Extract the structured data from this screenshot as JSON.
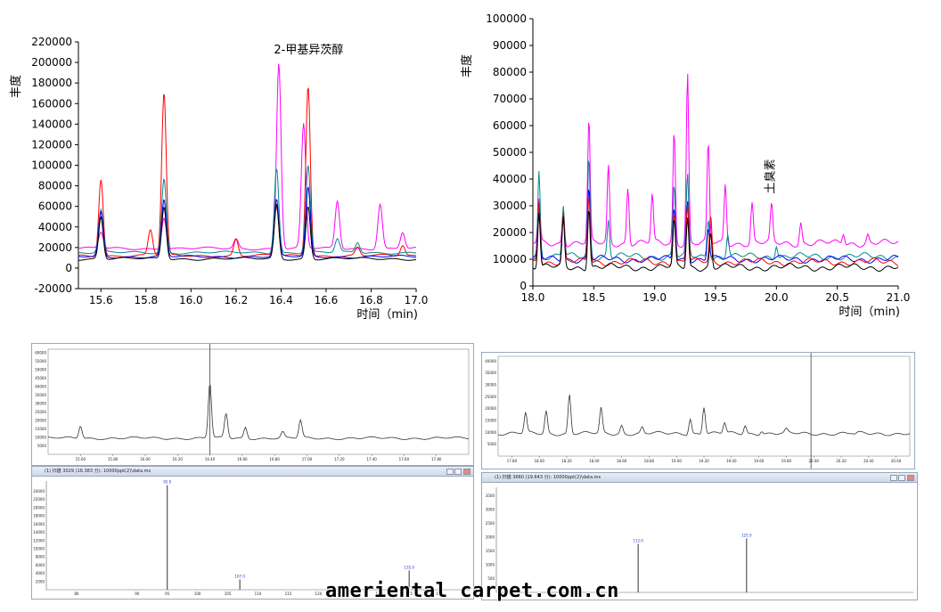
{
  "chart_data": [
    {
      "type": "line",
      "title": "",
      "xlabel": "时间（min)",
      "ylabel": "丰度",
      "xlim": [
        15.5,
        17.0
      ],
      "ylim": [
        -20000,
        220000
      ],
      "x_ticks": [
        "15.6",
        "15.8",
        "16.0",
        "16.2",
        "16.4",
        "16.6",
        "16.8",
        "17.0"
      ],
      "y_ticks": [
        "-20000",
        "0",
        "20000",
        "40000",
        "60000",
        "80000",
        "100000",
        "120000",
        "140000",
        "160000",
        "180000",
        "200000",
        "220000"
      ],
      "annotations": [
        {
          "text": "2-甲基异茨醇",
          "x": 16.4
        }
      ],
      "series": [
        {
          "color": "#ff00ff",
          "peaks": [
            [
              15.6,
              35000
            ],
            [
              15.88,
              50000
            ],
            [
              16.2,
              28000
            ],
            [
              16.39,
              200000
            ],
            [
              16.5,
              140000
            ],
            [
              16.65,
              65000
            ],
            [
              16.84,
              63000
            ],
            [
              16.94,
              35000
            ]
          ]
        },
        {
          "color": "#ff0000",
          "peaks": [
            [
              15.6,
              87000
            ],
            [
              15.82,
              37000
            ],
            [
              15.88,
              170000
            ],
            [
              16.2,
              28000
            ],
            [
              16.38,
              60000
            ],
            [
              16.52,
              178000
            ],
            [
              16.74,
              20000
            ],
            [
              16.94,
              22000
            ]
          ]
        },
        {
          "color": "#008b8b",
          "peaks": [
            [
              15.6,
              56000
            ],
            [
              15.88,
              87000
            ],
            [
              16.38,
              98000
            ],
            [
              16.52,
              100000
            ],
            [
              16.65,
              28000
            ],
            [
              16.74,
              25000
            ]
          ]
        },
        {
          "color": "#0000ff",
          "peaks": [
            [
              15.6,
              54000
            ],
            [
              15.88,
              66000
            ],
            [
              16.38,
              66000
            ],
            [
              16.52,
              78000
            ]
          ]
        },
        {
          "color": "#000000",
          "peaks": [
            [
              15.6,
              50000
            ],
            [
              15.88,
              60000
            ],
            [
              16.38,
              62000
            ],
            [
              16.52,
              60000
            ]
          ]
        }
      ]
    },
    {
      "type": "line",
      "title": "",
      "xlabel": "时间（min)",
      "ylabel": "丰度",
      "xlim": [
        18.0,
        21.0
      ],
      "ylim": [
        0,
        100000
      ],
      "x_ticks": [
        "18.0",
        "18.5",
        "19.0",
        "19.5",
        "20.0",
        "20.5",
        "21.0"
      ],
      "y_ticks": [
        "0",
        "10000",
        "20000",
        "30000",
        "40000",
        "50000",
        "60000",
        "70000",
        "80000",
        "90000",
        "100000"
      ],
      "annotations": [
        {
          "text": "土臭素",
          "x": 19.98
        }
      ],
      "series": [
        {
          "color": "#ff00ff",
          "peaks": [
            [
              18.05,
              32000
            ],
            [
              18.25,
              28000
            ],
            [
              18.46,
              62000
            ],
            [
              18.62,
              45000
            ],
            [
              18.78,
              37000
            ],
            [
              18.98,
              34000
            ],
            [
              19.16,
              58000
            ],
            [
              19.27,
              80000
            ],
            [
              19.44,
              53000
            ],
            [
              19.58,
              38000
            ],
            [
              19.8,
              31000
            ],
            [
              19.96,
              30000
            ],
            [
              20.2,
              24000
            ],
            [
              20.55,
              20000
            ],
            [
              20.75,
              19000
            ]
          ]
        },
        {
          "color": "#008b8b",
          "peaks": [
            [
              18.05,
              43000
            ],
            [
              18.25,
              30000
            ],
            [
              18.46,
              48000
            ],
            [
              18.62,
              25000
            ],
            [
              19.16,
              38000
            ],
            [
              19.27,
              41000
            ],
            [
              19.44,
              26000
            ],
            [
              19.6,
              20000
            ],
            [
              20.0,
              16000
            ]
          ]
        },
        {
          "color": "#0000ff",
          "peaks": [
            [
              18.05,
              30000
            ],
            [
              18.25,
              28000
            ],
            [
              18.46,
              37000
            ],
            [
              19.16,
              30000
            ],
            [
              19.27,
              33000
            ],
            [
              19.44,
              22000
            ]
          ]
        },
        {
          "color": "#ff0000",
          "peaks": [
            [
              18.05,
              32000
            ],
            [
              18.25,
              27000
            ],
            [
              18.46,
              34000
            ],
            [
              19.16,
              28000
            ],
            [
              19.27,
              31000
            ],
            [
              19.46,
              26000
            ]
          ]
        },
        {
          "color": "#000000",
          "peaks": [
            [
              18.05,
              28000
            ],
            [
              18.25,
              25000
            ],
            [
              18.46,
              30000
            ],
            [
              19.16,
              24000
            ],
            [
              19.27,
              26000
            ],
            [
              19.46,
              20000
            ]
          ]
        }
      ]
    },
    {
      "type": "line",
      "title": "",
      "y_ticks": [
        "5000",
        "10000",
        "15000",
        "20000",
        "25000",
        "30000",
        "35000",
        "40000",
        "45000",
        "50000",
        "55000",
        "60000"
      ],
      "x_ticks": [
        "15.60",
        "15.80",
        "16.00",
        "16.20",
        "16.40",
        "16.60",
        "16.80",
        "17.00",
        "17.20",
        "17.40",
        "17.60",
        "17.80"
      ],
      "series": [
        {
          "color": "#333333",
          "peaks": [
            [
              15.6,
              17000
            ],
            [
              16.4,
              42000
            ],
            [
              16.5,
              24000
            ],
            [
              16.62,
              16000
            ],
            [
              16.96,
              20000
            ],
            [
              16.85,
              13000
            ]
          ]
        }
      ]
    },
    {
      "type": "line",
      "title": "",
      "y_ticks": [
        "5000",
        "10000",
        "15000",
        "20000",
        "25000",
        "30000",
        "35000",
        "40000"
      ],
      "x_ticks": [
        "17.80",
        "18.00",
        "18.20",
        "18.40",
        "18.60",
        "18.80",
        "19.00",
        "19.20",
        "19.40",
        "19.60",
        "19.80",
        "20.00",
        "20.20",
        "20.40",
        "20.60"
      ],
      "series": [
        {
          "color": "#333333",
          "peaks": [
            [
              17.9,
              18000
            ],
            [
              18.05,
              19000
            ],
            [
              18.22,
              26000
            ],
            [
              18.45,
              20000
            ],
            [
              18.6,
              13000
            ],
            [
              18.75,
              12000
            ],
            [
              19.1,
              16000
            ],
            [
              19.2,
              21000
            ],
            [
              19.35,
              14000
            ],
            [
              19.5,
              13000
            ],
            [
              19.62,
              11000
            ],
            [
              19.8,
              11000
            ],
            [
              20.3,
              9000
            ]
          ]
        }
      ]
    },
    {
      "type": "bar",
      "title": "(1) 扫描 3029 (16.383 分): 10000ppt(2)\\data.ms",
      "y_ticks": [
        "2000",
        "4000",
        "6000",
        "8000",
        "10000",
        "12000",
        "14000",
        "16000",
        "18000",
        "20000",
        "22000",
        "24000"
      ],
      "x_ticks": [
        "80",
        "90",
        "95",
        "100",
        "105",
        "110",
        "115",
        "120",
        "125",
        "130",
        "135",
        "140"
      ],
      "categories": [
        "95.0",
        "107.0",
        "135.0"
      ],
      "values": [
        25500,
        2500,
        4700
      ]
    },
    {
      "type": "bar",
      "title": "(1) 扫描 3660 (19.643 分): 10000ppt(2)\\data.ms",
      "y_ticks": [
        "500",
        "1000",
        "1500",
        "2000",
        "2500",
        "3000",
        "3500"
      ],
      "categories": [
        "112.0",
        "125.0"
      ],
      "values": [
        1750,
        1950
      ]
    }
  ],
  "watermark": "ameriental carpet.com.cn"
}
